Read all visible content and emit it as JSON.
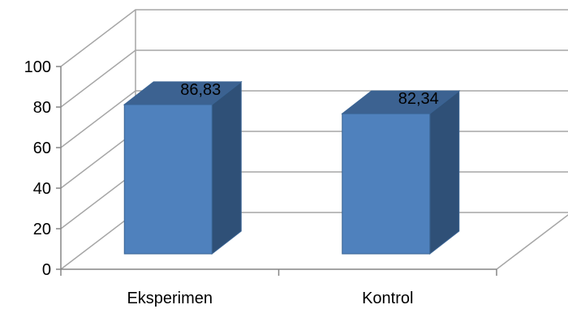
{
  "chart_data": {
    "type": "bar",
    "categories": [
      "Eksperimen",
      "Kontrol"
    ],
    "values": [
      86.83,
      82.34
    ],
    "data_labels": [
      "86,83",
      "82,34"
    ],
    "ylim": [
      0,
      100
    ],
    "yticks": [
      "0",
      "20",
      "40",
      "60",
      "80",
      "100"
    ],
    "title": "",
    "xlabel": "",
    "ylabel": "",
    "grid": true,
    "style": "3d-column",
    "colors": {
      "front": "#4f81bd",
      "side": "#2f5077",
      "top": "#3c6291",
      "edge": "#3a6494"
    }
  }
}
